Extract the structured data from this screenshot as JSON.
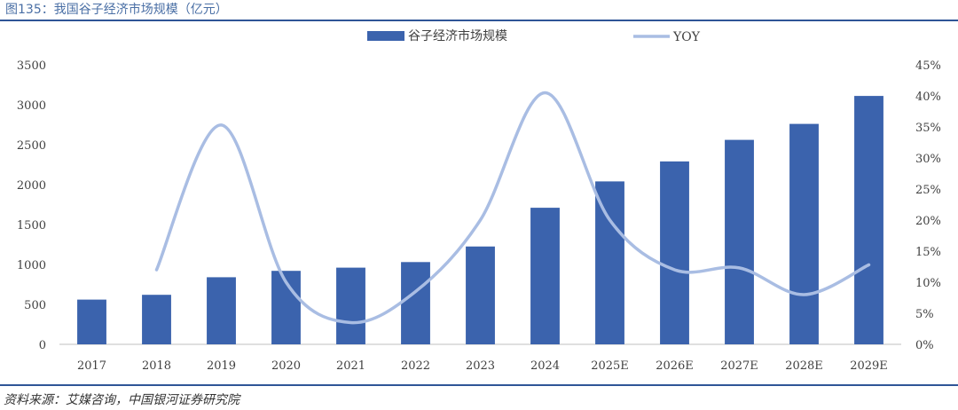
{
  "figure": {
    "title": "图135：我国谷子经济市场规模（亿元）",
    "source": "资料来源：艾媒咨询，中国银河证券研究院"
  },
  "chart_data": {
    "type": "bar",
    "categories": [
      "2017",
      "2018",
      "2019",
      "2020",
      "2021",
      "2022",
      "2023",
      "2024",
      "2025E",
      "2026E",
      "2027E",
      "2028E",
      "2029E"
    ],
    "series": [
      {
        "name": "谷子经济市场规模",
        "type": "bar",
        "axis": "left",
        "color": "#3b63ad",
        "values": [
          560,
          620,
          840,
          920,
          960,
          1030,
          1225,
          1710,
          2040,
          2290,
          2560,
          2760,
          3110
        ]
      },
      {
        "name": "YOY",
        "type": "line",
        "axis": "right",
        "color": "#a9bde3",
        "values": [
          null,
          12.0,
          35.3,
          10.0,
          3.5,
          8.5,
          20.0,
          40.5,
          20.0,
          12.0,
          12.3,
          8.0,
          12.8
        ]
      }
    ],
    "ylim": [
      0,
      3500
    ],
    "yticks": [
      0,
      500,
      1000,
      1500,
      2000,
      2500,
      3000,
      3500
    ],
    "y2lim": [
      0,
      45
    ],
    "y2ticks": [
      "0%",
      "5%",
      "10%",
      "15%",
      "20%",
      "25%",
      "30%",
      "35%",
      "40%",
      "45%"
    ],
    "legend_position": "top-center",
    "grid": false
  }
}
